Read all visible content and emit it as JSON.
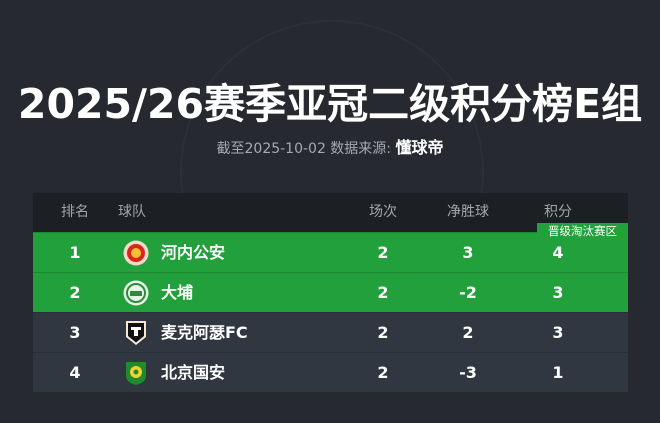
{
  "title": "2025/26赛季亚冠二级积分榜E组",
  "subtitle": {
    "prefix": "截至2025-10-02 数据来源:",
    "source": "懂球帝"
  },
  "table": {
    "headers": {
      "rank": "排名",
      "team": "球队",
      "played": "场次",
      "gd": "净胜球",
      "pts": "积分"
    },
    "zone_badge": "晋级淘汰赛区",
    "rows": [
      {
        "rank": "1",
        "team": "河内公安",
        "played": "2",
        "gd": "3",
        "pts": "4",
        "zone": "qualify",
        "logo": "hanoi-police-crest"
      },
      {
        "rank": "2",
        "team": "大埔",
        "played": "2",
        "gd": "-2",
        "pts": "3",
        "zone": "qualify",
        "logo": "tai-po-crest"
      },
      {
        "rank": "3",
        "team": "麦克阿瑟FC",
        "played": "2",
        "gd": "2",
        "pts": "3",
        "zone": "none",
        "logo": "macarthur-fc-crest"
      },
      {
        "rank": "4",
        "team": "北京国安",
        "played": "2",
        "gd": "-3",
        "pts": "1",
        "zone": "none",
        "logo": "beijing-guoan-crest"
      }
    ]
  },
  "colors": {
    "background": "#262a30",
    "header": "#1c1f24",
    "qualify": "#21a03b",
    "row": "#313740"
  }
}
